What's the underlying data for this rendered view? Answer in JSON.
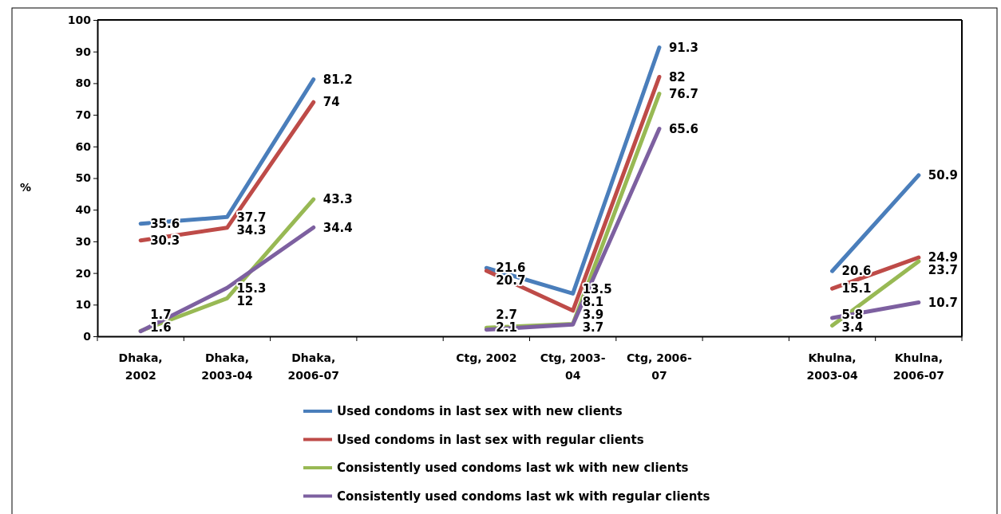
{
  "chart_data": {
    "type": "line",
    "ylabel": "%",
    "categories": [
      "Dhaka, 2002",
      "Dhaka, 2003-04",
      "Dhaka, 2006-07",
      null,
      "Ctg, 2002",
      "Ctg, 2003-04",
      "Ctg, 2006-07",
      null,
      "Khulna, 2003-04",
      "Khulna, 2006-07"
    ],
    "series": [
      {
        "name": "Used condoms in last sex with new clients",
        "color": "#4a7ebb",
        "values": [
          35.6,
          37.7,
          81.2,
          null,
          21.6,
          13.5,
          91.3,
          null,
          20.6,
          50.9
        ]
      },
      {
        "name": "Used condoms in last sex with regular clients",
        "color": "#be4b48",
        "values": [
          30.3,
          34.3,
          74,
          null,
          20.7,
          8.1,
          82,
          null,
          15.1,
          24.9
        ]
      },
      {
        "name": "Consistently used condoms last wk with new clients",
        "color": "#98b954",
        "values": [
          1.7,
          12,
          43.3,
          null,
          2.7,
          3.9,
          76.7,
          null,
          3.4,
          23.7
        ]
      },
      {
        "name": "Consistently used condoms last wk with regular clients",
        "color": "#7d60a0",
        "values": [
          1.6,
          15.3,
          34.4,
          null,
          2.1,
          3.7,
          65.6,
          null,
          5.8,
          10.7
        ]
      }
    ],
    "ylim": [
      0,
      100
    ],
    "yticks": [
      0,
      10,
      20,
      30,
      40,
      50,
      60,
      70,
      80,
      90,
      100
    ],
    "grid": false,
    "legend": "bottom",
    "data_labels": true,
    "marker": "none",
    "line_style": "solid"
  }
}
